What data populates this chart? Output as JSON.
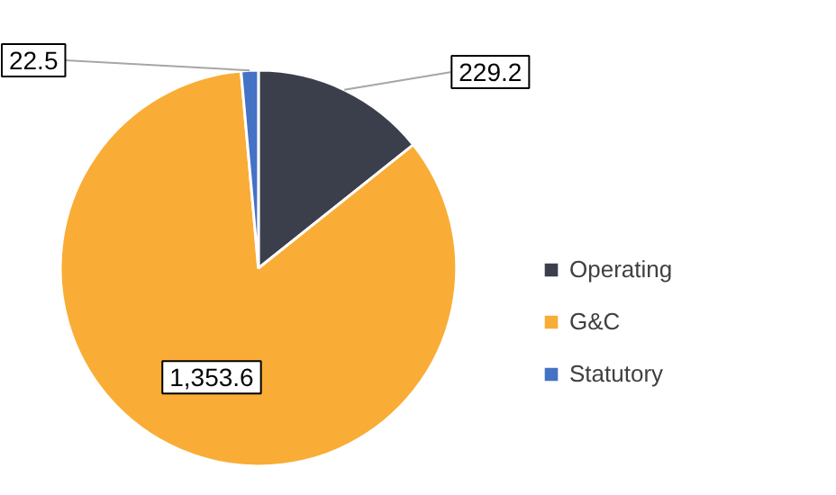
{
  "chart_data": {
    "type": "pie",
    "categories": [
      "Operating",
      "G&C",
      "Statutory"
    ],
    "values": [
      229.2,
      1353.6,
      22.5
    ],
    "colors": [
      "#3b3f4b",
      "#f9ad36",
      "#4472c4"
    ],
    "value_labels": [
      "229.2",
      "1,353.6",
      "22.5"
    ],
    "legend": "right"
  }
}
